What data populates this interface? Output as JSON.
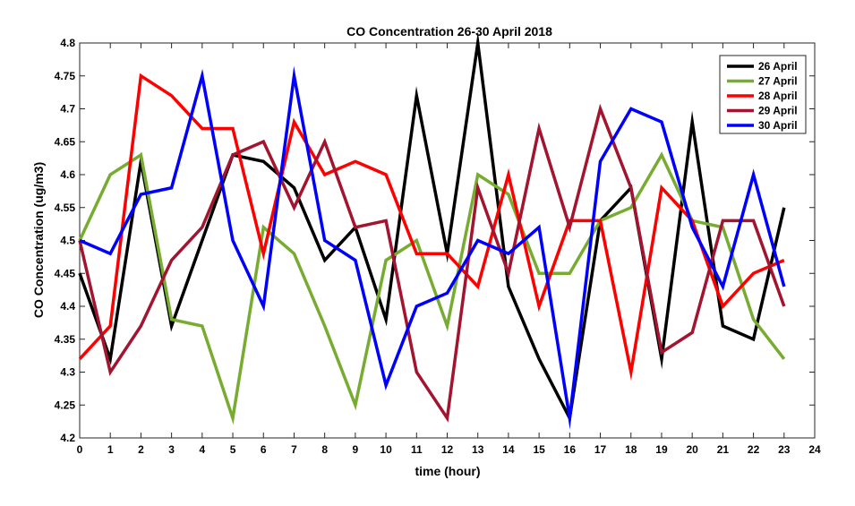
{
  "chart_data": {
    "type": "line",
    "title": "CO Concentration 26-30 April 2018",
    "xlabel": "time (hour)",
    "ylabel": "CO Concentration (ug/m3)",
    "xlim": [
      0,
      24
    ],
    "ylim": [
      4.2,
      4.8
    ],
    "x_ticks": [
      0,
      1,
      2,
      3,
      4,
      5,
      6,
      7,
      8,
      9,
      10,
      11,
      12,
      13,
      14,
      15,
      16,
      17,
      18,
      19,
      20,
      21,
      22,
      23,
      24
    ],
    "y_ticks": [
      "4.2",
      "4.25",
      "4.3",
      "4.35",
      "4.4",
      "4.45",
      "4.5",
      "4.55",
      "4.6",
      "4.65",
      "4.7",
      "4.75",
      "4.8"
    ],
    "grid": false,
    "legend_position": "top-right",
    "x": [
      0,
      1,
      2,
      3,
      4,
      5,
      6,
      7,
      8,
      9,
      10,
      11,
      12,
      13,
      14,
      15,
      16,
      17,
      18,
      19,
      20,
      21,
      22,
      23
    ],
    "series": [
      {
        "name": "26 April",
        "color": "#000000",
        "values": [
          4.45,
          4.32,
          4.62,
          4.37,
          4.5,
          4.63,
          4.62,
          4.58,
          4.47,
          4.52,
          4.38,
          4.72,
          4.48,
          4.8,
          4.43,
          4.32,
          4.23,
          4.53,
          4.58,
          4.32,
          4.68,
          4.37,
          4.35,
          4.55
        ]
      },
      {
        "name": "27 April",
        "color": "#77ac30",
        "values": [
          4.5,
          4.6,
          4.63,
          4.38,
          4.37,
          4.23,
          4.52,
          4.48,
          4.37,
          4.25,
          4.47,
          4.5,
          4.37,
          4.6,
          4.57,
          4.45,
          4.45,
          4.53,
          4.55,
          4.63,
          4.53,
          4.52,
          4.38,
          4.32
        ]
      },
      {
        "name": "28 April",
        "color": "#ff0000",
        "values": [
          4.32,
          4.37,
          4.75,
          4.72,
          4.67,
          4.67,
          4.48,
          4.68,
          4.6,
          4.62,
          4.6,
          4.48,
          4.48,
          4.43,
          4.6,
          4.4,
          4.53,
          4.53,
          4.3,
          4.58,
          4.53,
          4.4,
          4.45,
          4.47
        ]
      },
      {
        "name": "29 April",
        "color": "#a2142f",
        "values": [
          4.5,
          4.3,
          4.37,
          4.47,
          4.52,
          4.63,
          4.65,
          4.55,
          4.65,
          4.52,
          4.53,
          4.3,
          4.23,
          4.58,
          4.45,
          4.67,
          4.52,
          4.7,
          4.58,
          4.33,
          4.36,
          4.53,
          4.53,
          4.4
        ]
      },
      {
        "name": "30 April",
        "color": "#0000ff",
        "values": [
          4.5,
          4.48,
          4.57,
          4.58,
          4.75,
          4.5,
          4.4,
          4.75,
          4.5,
          4.47,
          4.28,
          4.4,
          4.42,
          4.5,
          4.48,
          4.52,
          4.23,
          4.62,
          4.7,
          4.68,
          4.52,
          4.43,
          4.6,
          4.43
        ]
      }
    ]
  }
}
